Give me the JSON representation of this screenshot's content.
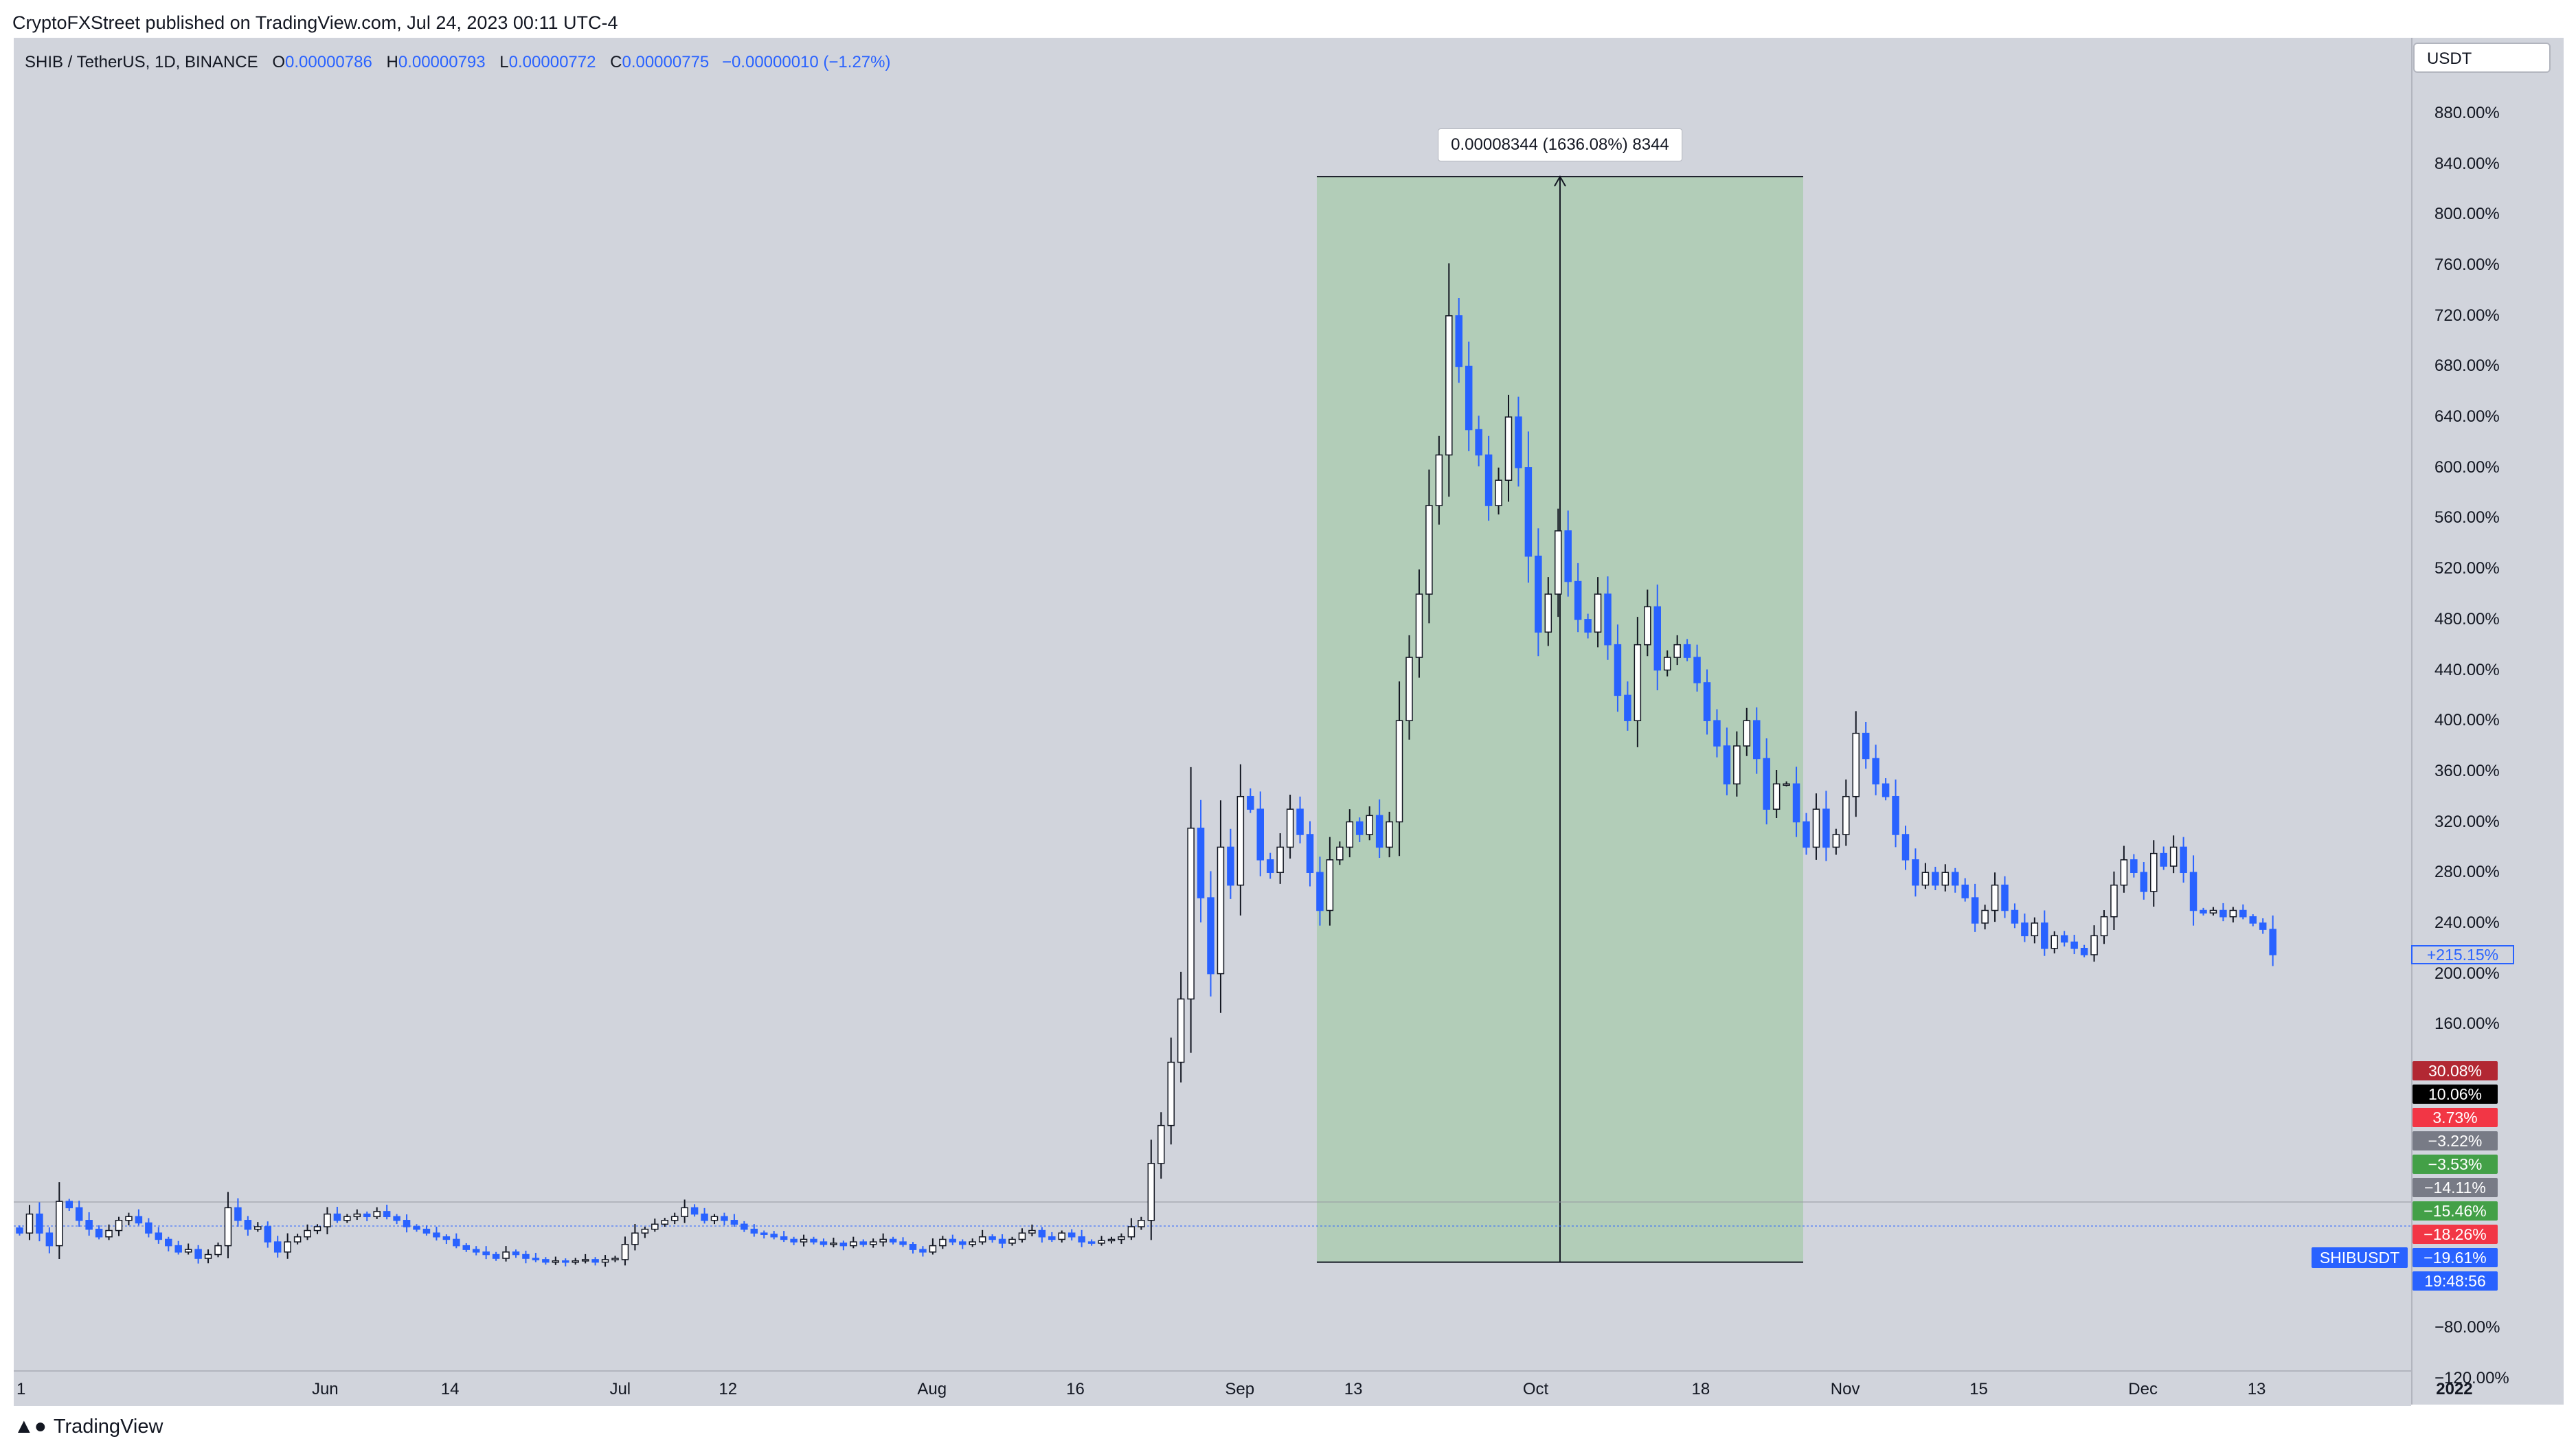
{
  "attribution": "CryptoFXStreet published on TradingView.com, Jul 24, 2023 00:11 UTC-4",
  "symbol": {
    "name": "SHIB / TetherUS, 1D, BINANCE",
    "o_label": "O",
    "o_value": "0.00000786",
    "h_label": "H",
    "h_value": "0.00000793",
    "l_label": "L",
    "l_value": "0.00000772",
    "c_label": "C",
    "c_value": "0.00000775",
    "change": "−0.00000010 (−1.27%)"
  },
  "currency_button": "USDT",
  "measure_tooltip": "0.00008344 (1636.08%) 8344",
  "symbol_badge": "SHIBUSDT",
  "current_pct_badge": "+215.15%",
  "countdown_badge": "19:48:56",
  "footer_logo": "TradingView",
  "colors": {
    "background": "#d1d4dc",
    "up_candle": "#ffffff",
    "down_candle": "#2962ff",
    "wick": "#131722",
    "measure_fill": "#b2cdb8",
    "blue": "#2962ff"
  },
  "side_badges": [
    {
      "label": "30.08%",
      "color": "#b22833"
    },
    {
      "label": "10.06%",
      "color": "#000000"
    },
    {
      "label": "3.73%",
      "color": "#f23645"
    },
    {
      "label": "−3.22%",
      "color": "#787b86"
    },
    {
      "label": "−3.53%",
      "color": "#43a047"
    },
    {
      "label": "−14.11%",
      "color": "#787b86"
    },
    {
      "label": "−15.46%",
      "color": "#43a047"
    },
    {
      "label": "−18.26%",
      "color": "#f23645"
    },
    {
      "label": "−19.61%",
      "color": "#2962ff"
    }
  ],
  "chart_data": {
    "type": "candlestick",
    "y_scale": "percent",
    "y_range": [
      -140,
      920
    ],
    "y_ticks": [
      "880.00%",
      "840.00%",
      "800.00%",
      "760.00%",
      "720.00%",
      "680.00%",
      "640.00%",
      "600.00%",
      "560.00%",
      "520.00%",
      "480.00%",
      "440.00%",
      "400.00%",
      "360.00%",
      "320.00%",
      "280.00%",
      "240.00%",
      "200.00%",
      "160.00%",
      "−80.00%",
      "−120.00%"
    ],
    "x_ticks": [
      "1",
      "Jun",
      "14",
      "Jul",
      "12",
      "Aug",
      "16",
      "Sep",
      "13",
      "Oct",
      "18",
      "Nov",
      "15",
      "Dec",
      "13",
      "2022"
    ],
    "measure": {
      "start_date": "2021-09-09",
      "end_date": "2021-10-28",
      "low_pct": -28,
      "high_pct": 830
    },
    "candles": [
      [
        -1,
        -5
      ],
      [
        -5,
        10
      ],
      [
        10,
        -5
      ],
      [
        -5,
        -15
      ],
      [
        -15,
        20
      ],
      [
        20,
        15
      ],
      [
        15,
        5
      ],
      [
        5,
        -2
      ],
      [
        -2,
        -8
      ],
      [
        -8,
        -3
      ],
      [
        -3,
        5
      ],
      [
        5,
        8
      ],
      [
        8,
        3
      ],
      [
        3,
        -5
      ],
      [
        -5,
        -10
      ],
      [
        -10,
        -15
      ],
      [
        -15,
        -20
      ],
      [
        -20,
        -18
      ],
      [
        -18,
        -25
      ],
      [
        -25,
        -22
      ],
      [
        -22,
        -15
      ],
      [
        -15,
        15
      ],
      [
        15,
        5
      ],
      [
        5,
        -2
      ],
      [
        -2,
        0
      ],
      [
        0,
        -12
      ],
      [
        -12,
        -20
      ],
      [
        -20,
        -12
      ],
      [
        -12,
        -8
      ],
      [
        -8,
        -3
      ],
      [
        -3,
        0
      ],
      [
        0,
        10
      ],
      [
        10,
        5
      ],
      [
        5,
        8
      ],
      [
        8,
        10
      ],
      [
        10,
        8
      ],
      [
        8,
        12
      ],
      [
        12,
        8
      ],
      [
        8,
        5
      ],
      [
        5,
        0
      ],
      [
        0,
        -2
      ],
      [
        -2,
        -5
      ],
      [
        -5,
        -8
      ],
      [
        -8,
        -10
      ],
      [
        -10,
        -15
      ],
      [
        -15,
        -18
      ],
      [
        -18,
        -20
      ],
      [
        -20,
        -22
      ],
      [
        -22,
        -25
      ],
      [
        -25,
        -20
      ],
      [
        -20,
        -22
      ],
      [
        -22,
        -25
      ],
      [
        -25,
        -26
      ],
      [
        -26,
        -28
      ],
      [
        -28,
        -27
      ],
      [
        -27,
        -28
      ],
      [
        -28,
        -27
      ],
      [
        -27,
        -26
      ],
      [
        -26,
        -28
      ],
      [
        -28,
        -26
      ],
      [
        -26,
        -25
      ],
      [
        -26,
        -14
      ],
      [
        -14,
        -5
      ],
      [
        -5,
        -2
      ],
      [
        -2,
        2
      ],
      [
        2,
        5
      ],
      [
        5,
        8
      ],
      [
        8,
        15
      ],
      [
        15,
        10
      ],
      [
        10,
        5
      ],
      [
        5,
        8
      ],
      [
        8,
        5
      ],
      [
        5,
        2
      ],
      [
        2,
        -2
      ],
      [
        -2,
        -5
      ],
      [
        -5,
        -6
      ],
      [
        -6,
        -8
      ],
      [
        -8,
        -10
      ],
      [
        -10,
        -12
      ],
      [
        -12,
        -10
      ],
      [
        -10,
        -12
      ],
      [
        -12,
        -14
      ],
      [
        -14,
        -13
      ],
      [
        -13,
        -15
      ],
      [
        -15,
        -12
      ],
      [
        -12,
        -14
      ],
      [
        -14,
        -12
      ],
      [
        -12,
        -10
      ],
      [
        -10,
        -12
      ],
      [
        -12,
        -14
      ],
      [
        -14,
        -18
      ],
      [
        -18,
        -20
      ],
      [
        -20,
        -15
      ],
      [
        -15,
        -10
      ],
      [
        -10,
        -12
      ],
      [
        -12,
        -14
      ],
      [
        -14,
        -12
      ],
      [
        -12,
        -8
      ],
      [
        -8,
        -10
      ],
      [
        -10,
        -13
      ],
      [
        -13,
        -10
      ],
      [
        -10,
        -5
      ],
      [
        -5,
        -3
      ],
      [
        -3,
        -8
      ],
      [
        -8,
        -10
      ],
      [
        -10,
        -5
      ],
      [
        -5,
        -8
      ],
      [
        -8,
        -12
      ],
      [
        -12,
        -13
      ],
      [
        -13,
        -11
      ],
      [
        -11,
        -10
      ],
      [
        -10,
        -8
      ],
      [
        -8,
        0
      ],
      [
        0,
        5
      ],
      [
        5,
        50
      ],
      [
        50,
        80
      ],
      [
        80,
        130
      ],
      [
        130,
        180
      ],
      [
        180,
        315
      ],
      [
        315,
        260
      ],
      [
        260,
        200
      ],
      [
        200,
        300
      ],
      [
        300,
        270
      ],
      [
        270,
        340
      ],
      [
        340,
        330
      ],
      [
        330,
        290
      ],
      [
        290,
        280
      ],
      [
        280,
        300
      ],
      [
        300,
        330
      ],
      [
        330,
        310
      ],
      [
        310,
        280
      ],
      [
        280,
        250
      ],
      [
        250,
        290
      ],
      [
        290,
        300
      ],
      [
        300,
        320
      ],
      [
        320,
        310
      ],
      [
        310,
        325
      ],
      [
        325,
        300
      ],
      [
        300,
        320
      ],
      [
        320,
        400
      ],
      [
        400,
        450
      ],
      [
        450,
        500
      ],
      [
        500,
        570
      ],
      [
        570,
        610
      ],
      [
        610,
        720
      ],
      [
        720,
        680
      ],
      [
        680,
        630
      ],
      [
        630,
        610
      ],
      [
        610,
        570
      ],
      [
        570,
        590
      ],
      [
        590,
        640
      ],
      [
        640,
        600
      ],
      [
        600,
        530
      ],
      [
        530,
        470
      ],
      [
        470,
        500
      ],
      [
        500,
        550
      ],
      [
        550,
        510
      ],
      [
        510,
        480
      ],
      [
        480,
        470
      ],
      [
        470,
        500
      ],
      [
        500,
        460
      ],
      [
        460,
        420
      ],
      [
        420,
        400
      ],
      [
        400,
        460
      ],
      [
        460,
        490
      ],
      [
        490,
        440
      ],
      [
        440,
        450
      ],
      [
        450,
        460
      ],
      [
        460,
        450
      ],
      [
        450,
        430
      ],
      [
        430,
        400
      ],
      [
        400,
        380
      ],
      [
        380,
        350
      ],
      [
        350,
        380
      ],
      [
        380,
        400
      ],
      [
        400,
        370
      ],
      [
        370,
        330
      ],
      [
        330,
        350
      ],
      [
        350,
        350
      ],
      [
        350,
        320
      ],
      [
        320,
        300
      ],
      [
        300,
        330
      ],
      [
        330,
        300
      ],
      [
        300,
        310
      ],
      [
        310,
        340
      ],
      [
        340,
        390
      ],
      [
        390,
        370
      ],
      [
        370,
        350
      ],
      [
        350,
        340
      ],
      [
        340,
        310
      ],
      [
        310,
        290
      ],
      [
        290,
        270
      ],
      [
        270,
        280
      ],
      [
        280,
        270
      ],
      [
        270,
        280
      ],
      [
        280,
        270
      ],
      [
        270,
        260
      ],
      [
        260,
        240
      ],
      [
        240,
        250
      ],
      [
        250,
        270
      ],
      [
        270,
        250
      ],
      [
        250,
        240
      ],
      [
        240,
        230
      ],
      [
        230,
        240
      ],
      [
        240,
        220
      ],
      [
        220,
        230
      ],
      [
        230,
        225
      ],
      [
        225,
        220
      ],
      [
        220,
        215
      ],
      [
        215,
        230
      ],
      [
        230,
        245
      ],
      [
        245,
        270
      ],
      [
        270,
        290
      ],
      [
        290,
        280
      ],
      [
        280,
        265
      ],
      [
        265,
        295
      ],
      [
        295,
        285
      ],
      [
        285,
        300
      ],
      [
        300,
        280
      ],
      [
        280,
        250
      ],
      [
        250,
        248
      ],
      [
        248,
        250
      ],
      [
        250,
        245
      ],
      [
        245,
        250
      ],
      [
        250,
        245
      ],
      [
        245,
        240
      ],
      [
        240,
        235
      ],
      [
        235,
        215
      ]
    ],
    "current_pct": 215.15
  }
}
